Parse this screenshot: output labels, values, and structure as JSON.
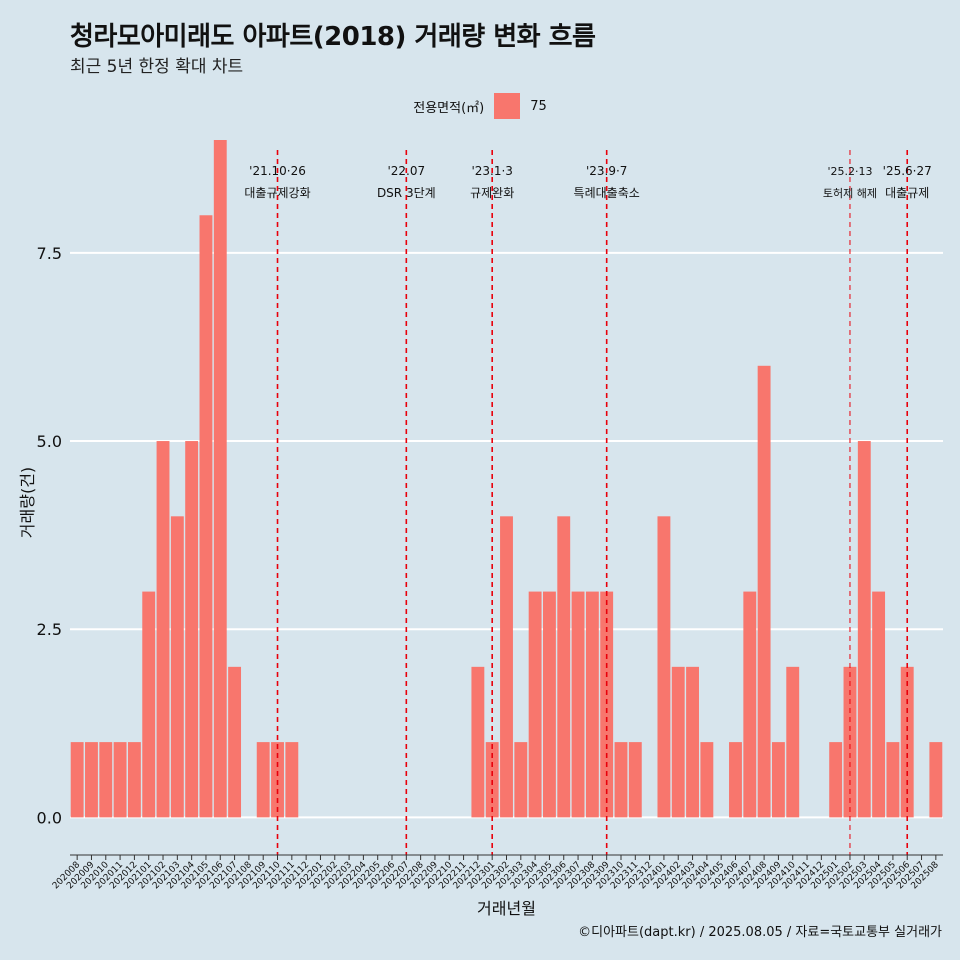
{
  "header": {
    "title": "청라모아미래도 아파트(2018) 거래량 변화 흐름",
    "subtitle": "최근 5년 한정 확대 차트"
  },
  "legend": {
    "title": "전용면적(㎡)",
    "item": "75",
    "color": "#f8766d"
  },
  "caption": "©디아파트(dapt.kr) / 2025.08.05 / 자료=국토교통부 실거래가",
  "chart_data": {
    "type": "bar",
    "xlabel": "거래년월",
    "ylabel": "거래량(건)",
    "ylim": [
      -0.5,
      9.0
    ],
    "yticks": [
      0.0,
      2.5,
      5.0,
      7.5
    ],
    "ytick_labels": [
      "0.0",
      "2.5",
      "5.0",
      "7.5"
    ],
    "grid": "horizontal",
    "legend_position": "top",
    "bar_color": "#f8766d",
    "categories": [
      "202008",
      "202009",
      "202010",
      "202011",
      "202012",
      "202101",
      "202102",
      "202103",
      "202104",
      "202105",
      "202106",
      "202107",
      "202108",
      "202109",
      "202110",
      "202111",
      "202112",
      "202201",
      "202202",
      "202203",
      "202204",
      "202205",
      "202206",
      "202207",
      "202208",
      "202209",
      "202210",
      "202211",
      "202212",
      "202301",
      "202302",
      "202303",
      "202304",
      "202305",
      "202306",
      "202307",
      "202308",
      "202309",
      "202310",
      "202311",
      "202312",
      "202401",
      "202402",
      "202403",
      "202404",
      "202405",
      "202406",
      "202407",
      "202408",
      "202409",
      "202410",
      "202411",
      "202412",
      "202501",
      "202502",
      "202503",
      "202504",
      "202505",
      "202506",
      "202507",
      "202508"
    ],
    "series": [
      {
        "values": [
          1,
          1,
          1,
          1,
          1,
          3,
          5,
          4,
          5,
          8,
          9,
          2,
          0,
          1,
          1,
          1,
          0,
          0,
          0,
          0,
          0,
          0,
          0,
          0,
          0,
          0,
          0,
          0,
          2,
          1,
          4,
          1,
          3,
          3,
          4,
          3,
          3,
          3,
          1,
          1,
          0,
          4,
          2,
          2,
          1,
          0,
          1,
          3,
          6,
          1,
          2,
          0,
          0,
          1,
          2,
          5,
          3,
          1,
          2,
          0,
          1
        ]
      }
    ],
    "annotations": [
      {
        "category": "202110",
        "date": "'21.10·26",
        "label": "대출규제강화",
        "small": false
      },
      {
        "category": "202207",
        "date": "'22.07",
        "label": "DSR 3단계",
        "small": false
      },
      {
        "category": "202301",
        "date": "'23.1·3",
        "label": "규제완화",
        "small": false
      },
      {
        "category": "202309",
        "date": "'23.9·7",
        "label": "특례대출축소",
        "small": false
      },
      {
        "category": "202502",
        "date": "'25.2·13",
        "label": "토허제 해제",
        "small": true
      },
      {
        "category": "202506",
        "date": "'25.6·27",
        "label": "대출규제",
        "small": false
      }
    ]
  }
}
